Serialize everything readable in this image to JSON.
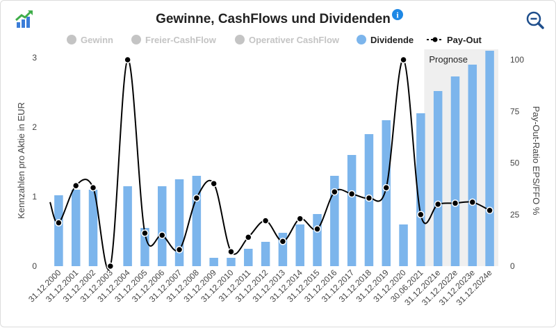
{
  "chart_data": {
    "type": "bar",
    "title": "Gewinne, CashFlows und Dividenden",
    "ylabel_left": "Kennzahlen pro Aktie in EUR",
    "ylabel_right": "Pay-Out-Ratio EPS/FFO %",
    "ylim_left": [
      0,
      3
    ],
    "ylim_right": [
      0,
      100
    ],
    "yticks_left": [
      "0",
      "1",
      "2",
      "3"
    ],
    "yticks_right": [
      "0",
      "25",
      "50",
      "75",
      "100"
    ],
    "grid": false,
    "legend_position": "top",
    "legend": [
      {
        "name": "Gewinn",
        "active": false,
        "color": "#c4c4c4"
      },
      {
        "name": "Freier-CashFlow",
        "active": false,
        "color": "#c4c4c4"
      },
      {
        "name": "Operativer CashFlow",
        "active": false,
        "color": "#c4c4c4"
      },
      {
        "name": "Dividende",
        "active": true,
        "color": "#7cb5ec"
      },
      {
        "name": "Pay-Out",
        "active": true,
        "color": "#000000"
      }
    ],
    "forecast_label": "Prognose",
    "forecast_start_index": 22,
    "categories": [
      "31.12.2000",
      "31.12.2001",
      "31.12.2002",
      "31.12.2003",
      "31.12.2004",
      "31.12.2005",
      "31.12.2006",
      "31.12.2007",
      "31.12.2008",
      "31.12.2009",
      "31.12.2010",
      "31.12.2011",
      "31.12.2012",
      "31.12.2013",
      "31.12.2014",
      "31.12.2015",
      "31.12.2016",
      "31.12.2017",
      "31.12.2018",
      "31.12.2019",
      "31.12.2020",
      "30.06.2021",
      "31.12.2021e",
      "31.12.2022e",
      "31.12.2023e",
      "31.12.2024e"
    ],
    "series": [
      {
        "name": "Dividende",
        "type": "bar",
        "axis": "left",
        "color": "#7cb5ec",
        "values": [
          1.02,
          1.1,
          1.1,
          0.0,
          1.15,
          0.55,
          1.15,
          1.25,
          1.3,
          0.12,
          0.12,
          0.25,
          0.35,
          0.48,
          0.6,
          0.75,
          1.3,
          1.6,
          1.9,
          2.1,
          0.6,
          2.2,
          2.52,
          2.73,
          2.9,
          3.1
        ]
      },
      {
        "name": "Pay-Out",
        "type": "spline",
        "axis": "right",
        "color": "#000000",
        "values": [
          21,
          39,
          38,
          0,
          100,
          16,
          15,
          8,
          33,
          40,
          7,
          14,
          22,
          12,
          23,
          18,
          36,
          35,
          33,
          38,
          100,
          25,
          30,
          30.5,
          31,
          27
        ]
      }
    ]
  }
}
